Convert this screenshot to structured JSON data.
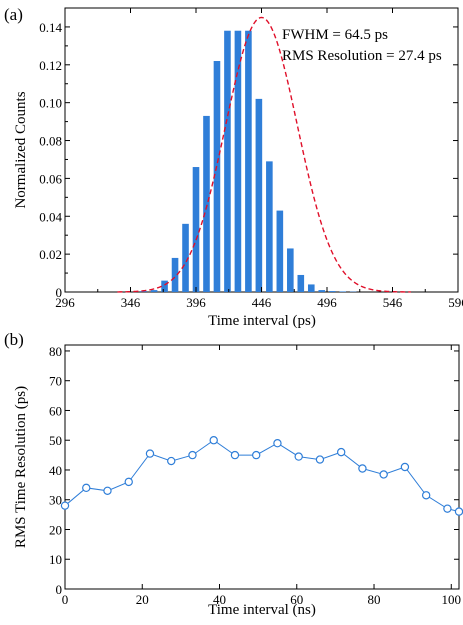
{
  "chart_data": [
    {
      "panel_label": "(a)",
      "type": "bar",
      "xlabel": "Time interval (ps)",
      "ylabel": "Normalized Counts",
      "xlim": [
        296,
        596
      ],
      "ylim": [
        0,
        0.15
      ],
      "xticks": [
        296,
        346,
        396,
        446,
        496,
        546,
        596
      ],
      "ytick_labels": [
        "0",
        "0.02",
        "0.04",
        "0.06",
        "0.08",
        "0.10",
        "0.12",
        "0.14"
      ],
      "yticks": [
        0,
        0.02,
        0.04,
        0.06,
        0.08,
        0.1,
        0.12,
        0.14
      ],
      "grid": false,
      "bar_color": "#2f7ed8",
      "fit_color": "#e0102a",
      "annotations": [
        "FWHM = 64.5 ps",
        "RMS Resolution = 27.4 ps"
      ],
      "x": [
        356,
        364,
        372,
        380,
        388,
        396,
        404,
        412,
        420,
        428,
        436,
        444,
        452,
        460,
        468,
        476,
        484,
        492,
        500,
        508,
        516
      ],
      "values": [
        0.0005,
        0.001,
        0.006,
        0.018,
        0.036,
        0.066,
        0.093,
        0.122,
        0.138,
        0.138,
        0.138,
        0.102,
        0.069,
        0.043,
        0.023,
        0.009,
        0.004,
        0.001,
        0.0005,
        0.0003,
        0.0002
      ],
      "fit": {
        "type": "gaussian",
        "mean": 446,
        "sigma": 27.4,
        "amplitude": 0.145
      }
    },
    {
      "panel_label": "(b)",
      "type": "line",
      "xlabel": "Time interval (ns)",
      "ylabel": "RMS Time Resolution (ps)",
      "xlim": [
        0,
        102
      ],
      "ylim": [
        0,
        82
      ],
      "xticks": [
        0,
        20,
        40,
        60,
        80,
        100
      ],
      "yticks": [
        0,
        10,
        20,
        30,
        40,
        50,
        60,
        70,
        80
      ],
      "grid": false,
      "line_color": "#2f7ed8",
      "marker": "circle",
      "x": [
        0,
        5.5,
        11,
        16.5,
        22,
        27.5,
        33,
        38.5,
        44,
        49.5,
        55,
        60.5,
        66,
        71.5,
        77,
        82.5,
        88,
        93.5,
        99,
        102
      ],
      "y": [
        28,
        34,
        33,
        36,
        45.5,
        43,
        45,
        50,
        45,
        45,
        49,
        44.5,
        43.5,
        46,
        40.5,
        38.5,
        41,
        31.5,
        27,
        26
      ]
    }
  ]
}
